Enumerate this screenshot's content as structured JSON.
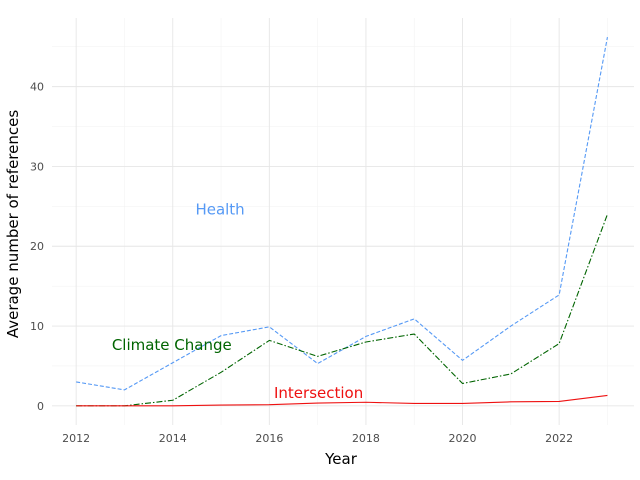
{
  "chart_data": {
    "type": "line",
    "title": "",
    "xlabel": "Year",
    "ylabel": "Average number of references",
    "xlim": [
      2011.5,
      2023.55
    ],
    "ylim": [
      -2.4,
      48.6
    ],
    "x_ticks": [
      2012,
      2014,
      2016,
      2018,
      2020,
      2022
    ],
    "x_tick_labels": [
      "2012",
      "2014",
      "2016",
      "2018",
      "2020",
      "2022"
    ],
    "y_ticks": [
      0,
      10,
      20,
      30,
      40
    ],
    "y_tick_labels": [
      "0",
      "10",
      "20",
      "30",
      "40"
    ],
    "grid": true,
    "legend": "none",
    "x": [
      2012,
      2013,
      2014,
      2015,
      2016,
      2017,
      2018,
      2019,
      2020,
      2021,
      2022,
      2023
    ],
    "series": [
      {
        "name": "Health",
        "color": "#5599f5",
        "style": "dashed",
        "values": [
          3.0,
          2.0,
          5.4,
          8.8,
          9.9,
          5.3,
          8.7,
          10.9,
          5.7,
          10.0,
          13.9,
          46.2
        ],
        "label_at": [
          2014.98,
          24.6
        ]
      },
      {
        "name": "Climate Change",
        "color": "#006400",
        "style": "dashdot",
        "values": [
          0.0,
          0.0,
          0.7,
          4.2,
          8.2,
          6.2,
          8.0,
          9.0,
          2.8,
          4.0,
          7.8,
          24.0
        ],
        "label_at": [
          2013.98,
          7.6
        ]
      },
      {
        "name": "Intersection",
        "color": "#ee1111",
        "style": "solid",
        "values": [
          0.0,
          0.0,
          0.0,
          0.1,
          0.15,
          0.35,
          0.45,
          0.3,
          0.3,
          0.5,
          0.55,
          1.3
        ],
        "label_at": [
          2017.02,
          1.6
        ]
      }
    ]
  }
}
